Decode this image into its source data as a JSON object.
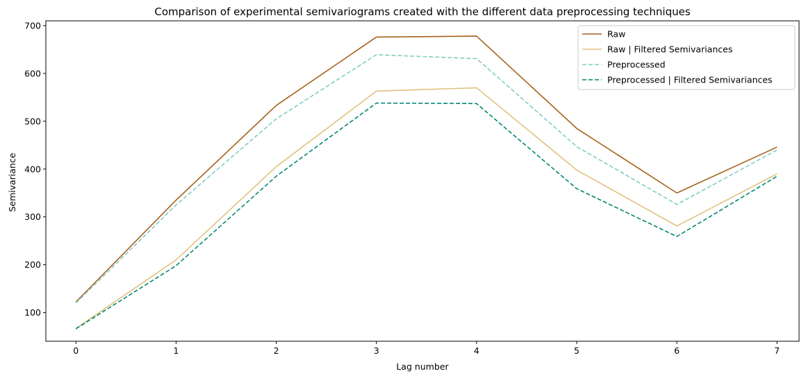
{
  "chart_data": {
    "type": "line",
    "title": "Comparison of experimental semivariograms created with the different data preprocessing techniques",
    "xlabel": "Lag number",
    "ylabel": "Semivariance",
    "x": [
      0,
      1,
      2,
      3,
      4,
      5,
      6,
      7
    ],
    "xticks": [
      "0",
      "1",
      "2",
      "3",
      "4",
      "5",
      "6",
      "7"
    ],
    "yticks": [
      100,
      200,
      300,
      400,
      500,
      600,
      700
    ],
    "xlim": [
      -0.3,
      7.22
    ],
    "ylim": [
      40,
      710
    ],
    "grid": false,
    "legend_position": "top-right",
    "series": [
      {
        "name": "Raw",
        "values": [
          122,
          335,
          533,
          676,
          678,
          485,
          350,
          446
        ],
        "color": "#a6611a",
        "dash": "solid"
      },
      {
        "name": "Raw | Filtered Semivariances",
        "values": [
          67,
          210,
          405,
          563,
          570,
          398,
          281,
          390
        ],
        "color": "#dfc27d",
        "dash": "solid"
      },
      {
        "name": "Preprocessed",
        "values": [
          120,
          325,
          505,
          639,
          631,
          447,
          326,
          440
        ],
        "color": "#80cdc1",
        "dash": "dashed"
      },
      {
        "name": "Preprocessed | Filtered Semivariances",
        "values": [
          66,
          198,
          385,
          538,
          537,
          359,
          259,
          385
        ],
        "color": "#018571",
        "dash": "dashed"
      }
    ]
  }
}
